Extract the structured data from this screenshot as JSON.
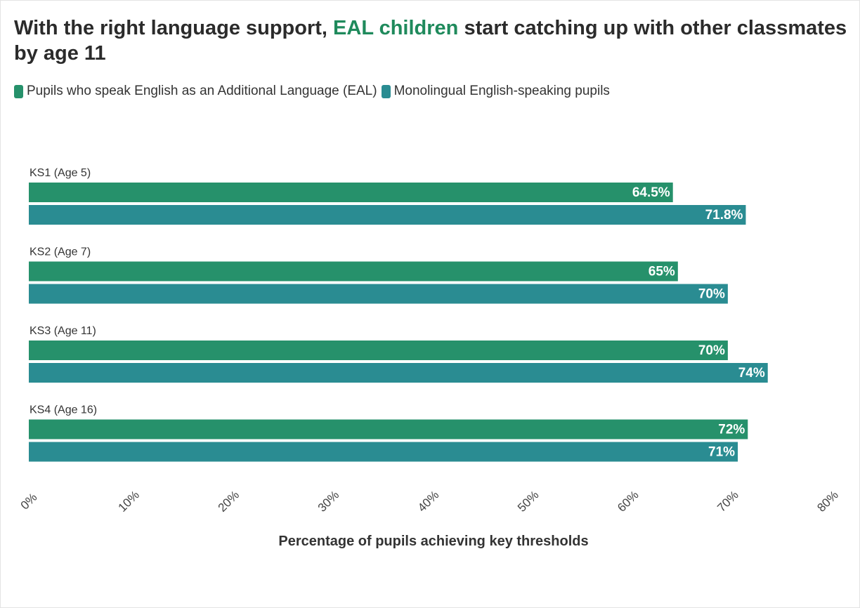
{
  "title": {
    "part1": "With the right language support, ",
    "highlight": "EAL children",
    "part2": " start catching up with other classmates by age 11"
  },
  "legend": [
    {
      "label": "Pupils who speak English as an Additional Language (EAL)",
      "color": "#26916b"
    },
    {
      "label": "Monolingual English-speaking pupils",
      "color": "#2a8c92"
    }
  ],
  "chart_data": {
    "type": "bar",
    "orientation": "horizontal",
    "categories": [
      "KS1 (Age 5)",
      "KS2 (Age 7)",
      "KS3 (Age 11)",
      "KS4 (Age 16)"
    ],
    "series": [
      {
        "name": "Pupils who speak English as an Additional Language (EAL)",
        "values": [
          64.5,
          65,
          70,
          72
        ],
        "labels": [
          "64.5%",
          "65%",
          "70%",
          "72%"
        ],
        "color": "#26916b"
      },
      {
        "name": "Monolingual English-speaking pupils",
        "values": [
          71.8,
          70,
          74,
          71
        ],
        "labels": [
          "71.8%",
          "70%",
          "74%",
          "71%"
        ],
        "color": "#2a8c92"
      }
    ],
    "xlabel": "Percentage of pupils achieving key thresholds",
    "xlim": [
      0,
      80
    ],
    "ticks": [
      0,
      10,
      20,
      30,
      40,
      50,
      60,
      70,
      80
    ],
    "tick_labels": [
      "0%",
      "10%",
      "20%",
      "30%",
      "40%",
      "50%",
      "60%",
      "70%",
      "80%"
    ],
    "grid": false,
    "legend_position": "top-left"
  }
}
